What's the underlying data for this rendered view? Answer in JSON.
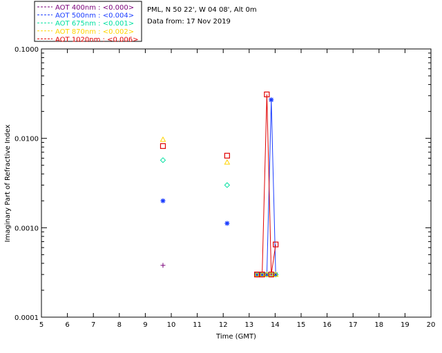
{
  "info": {
    "location": "PML, N 50 22', W 04 08', Alt 0m",
    "date": "Data from: 17 Nov 2019"
  },
  "legend": [
    {
      "label": "AOT  400nm : <0.000>",
      "color": "#7a007a"
    },
    {
      "label": "AOT  500nm : <0.004>",
      "color": "#1a3cff"
    },
    {
      "label": "AOT  675nm : <0.001>",
      "color": "#00e0a0"
    },
    {
      "label": "AOT  870nm : <0.002>",
      "color": "#ffd400"
    },
    {
      "label": "AOT 1020nm : <0.006>",
      "color": "#e00000"
    }
  ],
  "chart_data": {
    "type": "scatter",
    "xlabel": "Time (GMT)",
    "ylabel": "Imaginary Part of Refractive Index",
    "xlim": [
      5,
      20
    ],
    "ylim": [
      0.0001,
      0.1
    ],
    "yscale": "log",
    "x_ticks": [
      "5",
      "6",
      "7",
      "8",
      "9",
      "10",
      "11",
      "12",
      "13",
      "14",
      "15",
      "16",
      "17",
      "18",
      "19",
      "20"
    ],
    "y_ticks": [
      "0.0001",
      "0.0010",
      "0.0100",
      "0.1000"
    ],
    "series": [
      {
        "name": "AOT  400nm : <0.000>",
        "color": "#7a007a",
        "marker": "plus",
        "points": [
          [
            9.68,
            0.00038
          ],
          [
            13.3,
            0.0003
          ],
          [
            13.5,
            0.0003
          ],
          [
            13.68,
            0.0003
          ],
          [
            13.85,
            0.0003
          ],
          [
            14.02,
            0.0003
          ]
        ]
      },
      {
        "name": "AOT  500nm : <0.004>",
        "color": "#1a3cff",
        "marker": "asterisk",
        "points": [
          [
            9.68,
            0.002
          ],
          [
            12.15,
            0.00112
          ],
          [
            13.3,
            0.0003
          ],
          [
            13.5,
            0.0003
          ],
          [
            13.68,
            0.0003
          ],
          [
            13.85,
            0.027
          ],
          [
            14.02,
            0.0003
          ]
        ]
      },
      {
        "name": "AOT  675nm : <0.001>",
        "color": "#00e0a0",
        "marker": "diamond",
        "points": [
          [
            9.68,
            0.0057
          ],
          [
            12.15,
            0.003
          ],
          [
            13.3,
            0.0003
          ],
          [
            13.5,
            0.0003
          ],
          [
            13.68,
            0.0003
          ],
          [
            13.85,
            0.0003
          ],
          [
            14.02,
            0.0003
          ]
        ]
      },
      {
        "name": "AOT  870nm : <0.002>",
        "color": "#ffd400",
        "marker": "triangle",
        "points": [
          [
            9.68,
            0.0097
          ],
          [
            12.15,
            0.0054
          ],
          [
            13.3,
            0.0003
          ],
          [
            13.5,
            0.0003
          ],
          [
            13.68,
            0.0003
          ],
          [
            13.85,
            0.0003
          ],
          [
            14.02,
            0.0003
          ]
        ]
      },
      {
        "name": "AOT 1020nm : <0.006>",
        "color": "#e00000",
        "marker": "square",
        "points": [
          [
            9.68,
            0.0082
          ],
          [
            12.15,
            0.0064
          ],
          [
            13.3,
            0.0003
          ],
          [
            13.5,
            0.0003
          ],
          [
            13.68,
            0.031
          ],
          [
            13.85,
            0.0003
          ],
          [
            14.02,
            0.00065
          ]
        ]
      }
    ],
    "connected_lines": [
      {
        "color": "#1a3cff",
        "points": [
          [
            13.3,
            0.0003
          ],
          [
            13.5,
            0.0003
          ],
          [
            13.68,
            0.0003
          ],
          [
            13.85,
            0.027
          ],
          [
            14.02,
            0.0003
          ]
        ]
      },
      {
        "color": "#e00000",
        "points": [
          [
            13.3,
            0.0003
          ],
          [
            13.5,
            0.0003
          ],
          [
            13.68,
            0.031
          ],
          [
            13.85,
            0.0003
          ],
          [
            14.02,
            0.00065
          ]
        ]
      }
    ]
  }
}
